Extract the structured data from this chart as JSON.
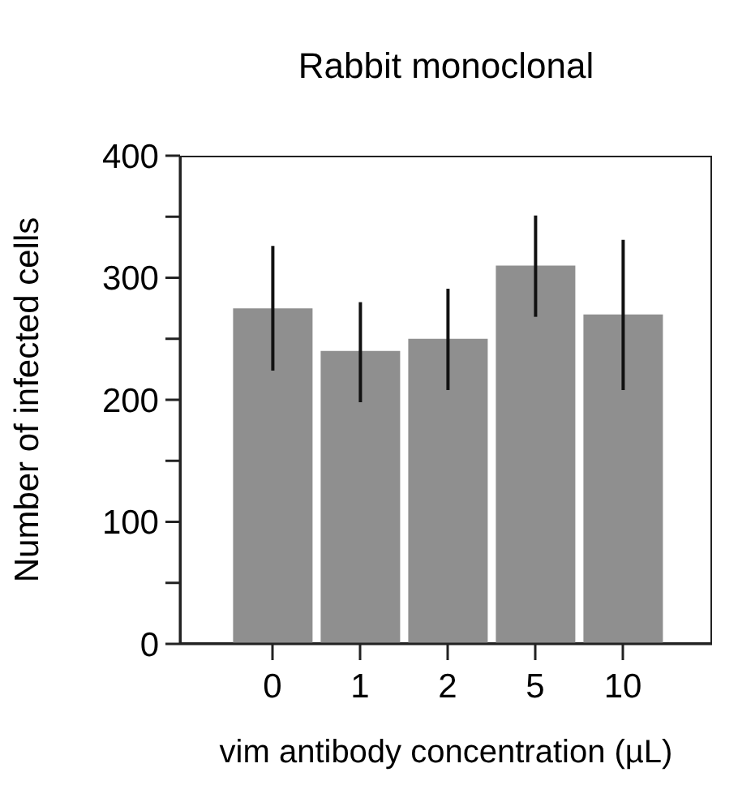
{
  "chart_data": {
    "type": "bar",
    "title": "Rabbit monoclonal",
    "xlabel": "vim antibody concentration (µL)",
    "ylabel": "Number of infected cells",
    "categories": [
      "0",
      "1",
      "2",
      "5",
      "10"
    ],
    "values": [
      275,
      240,
      250,
      310,
      270
    ],
    "errors": [
      [
        224,
        326
      ],
      [
        198,
        280
      ],
      [
        208,
        291
      ],
      [
        268,
        351
      ],
      [
        208,
        331
      ]
    ],
    "color": "#8f8f8f",
    "ylim": [
      0,
      400
    ],
    "yticks": [
      0,
      {
        "value": 50,
        "label": null
      },
      100,
      {
        "value": 150,
        "label": null
      },
      200,
      {
        "value": 250,
        "label": null
      },
      300,
      {
        "value": 350,
        "label": null
      },
      400
    ],
    "grid": false,
    "legend": false
  }
}
